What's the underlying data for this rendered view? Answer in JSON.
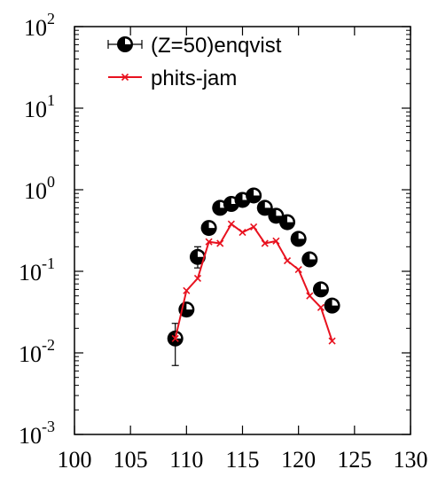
{
  "chart_data": {
    "type": "scatter",
    "title": "",
    "xlabel": "",
    "ylabel": "",
    "xlim": [
      100,
      130
    ],
    "ylim": [
      0.001,
      100
    ],
    "yscale": "log",
    "grid": false,
    "legend_position": "top-left",
    "x_ticks": [
      "100",
      "105",
      "110",
      "115",
      "120",
      "125",
      "130"
    ],
    "x_tick_values": [
      100,
      105,
      110,
      115,
      120,
      125,
      130
    ],
    "y_ticks": [
      {
        "base": "10",
        "exp": "-3",
        "value": 0.001
      },
      {
        "base": "10",
        "exp": "-2",
        "value": 0.01
      },
      {
        "base": "10",
        "exp": "-1",
        "value": 0.1
      },
      {
        "base": "10",
        "exp": "0",
        "value": 1
      },
      {
        "base": "10",
        "exp": "1",
        "value": 10
      },
      {
        "base": "10",
        "exp": "2",
        "value": 100
      }
    ],
    "series": [
      {
        "name": "(Z=50)enqvist",
        "style": "points-errorbars",
        "color": "#000000",
        "x": [
          109,
          110,
          111,
          112,
          113,
          114,
          115,
          116,
          117,
          118,
          119,
          120,
          121,
          122,
          123
        ],
        "y": [
          0.015,
          0.034,
          0.15,
          0.34,
          0.6,
          0.67,
          0.75,
          0.85,
          0.6,
          0.48,
          0.4,
          0.25,
          0.14,
          0.06,
          0.038
        ],
        "y_err_low": [
          0.008,
          0.006,
          0.04,
          0.03,
          0.04,
          0.04,
          0.04,
          0.05,
          0.04,
          0.03,
          0.03,
          0.02,
          0.01,
          0.006,
          0.004
        ],
        "y_err_high": [
          0.008,
          0.006,
          0.05,
          0.03,
          0.04,
          0.04,
          0.04,
          0.05,
          0.04,
          0.03,
          0.03,
          0.02,
          0.01,
          0.006,
          0.004
        ]
      },
      {
        "name": "phits-jam",
        "style": "line-cross",
        "color": "#e8121f",
        "x": [
          109,
          110,
          111,
          112,
          113,
          114,
          115,
          116,
          117,
          118,
          119,
          120,
          121,
          122,
          123
        ],
        "y": [
          0.015,
          0.058,
          0.082,
          0.23,
          0.22,
          0.38,
          0.3,
          0.35,
          0.22,
          0.235,
          0.135,
          0.105,
          0.05,
          0.036,
          0.014
        ]
      }
    ]
  }
}
